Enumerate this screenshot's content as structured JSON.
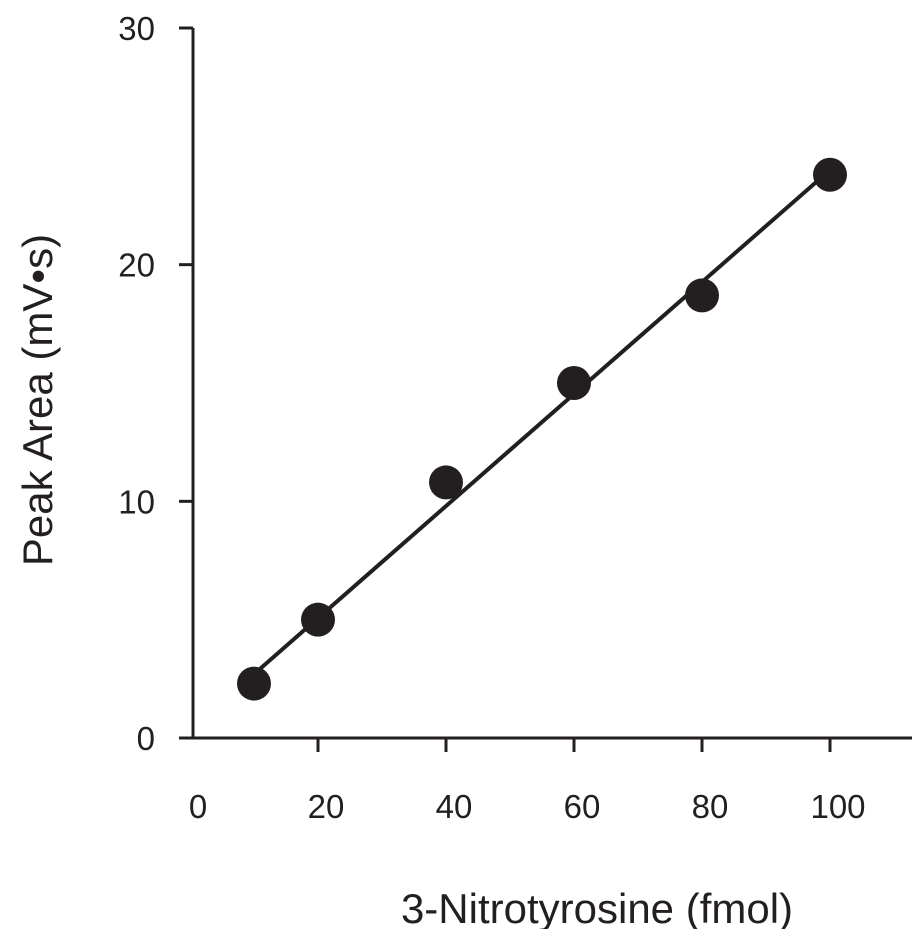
{
  "chart_data": {
    "type": "scatter",
    "title": "",
    "xlabel": "3-Nitrotyrosine (fmol)",
    "ylabel": "Peak Area (mV•s)",
    "xlim": [
      0,
      110
    ],
    "ylim": [
      0,
      30
    ],
    "xticks": [
      0,
      20,
      40,
      60,
      80,
      100
    ],
    "yticks": [
      0,
      10,
      20,
      30
    ],
    "grid": false,
    "legend": "none",
    "series": [
      {
        "x": [
          10,
          20,
          40,
          60,
          80,
          100
        ],
        "y": [
          2.3,
          5.0,
          10.8,
          15.0,
          18.7,
          23.8
        ],
        "color": "#231f20"
      }
    ],
    "fit_line": {
      "x": [
        10,
        100
      ],
      "y": [
        2.7,
        24.0
      ]
    }
  }
}
